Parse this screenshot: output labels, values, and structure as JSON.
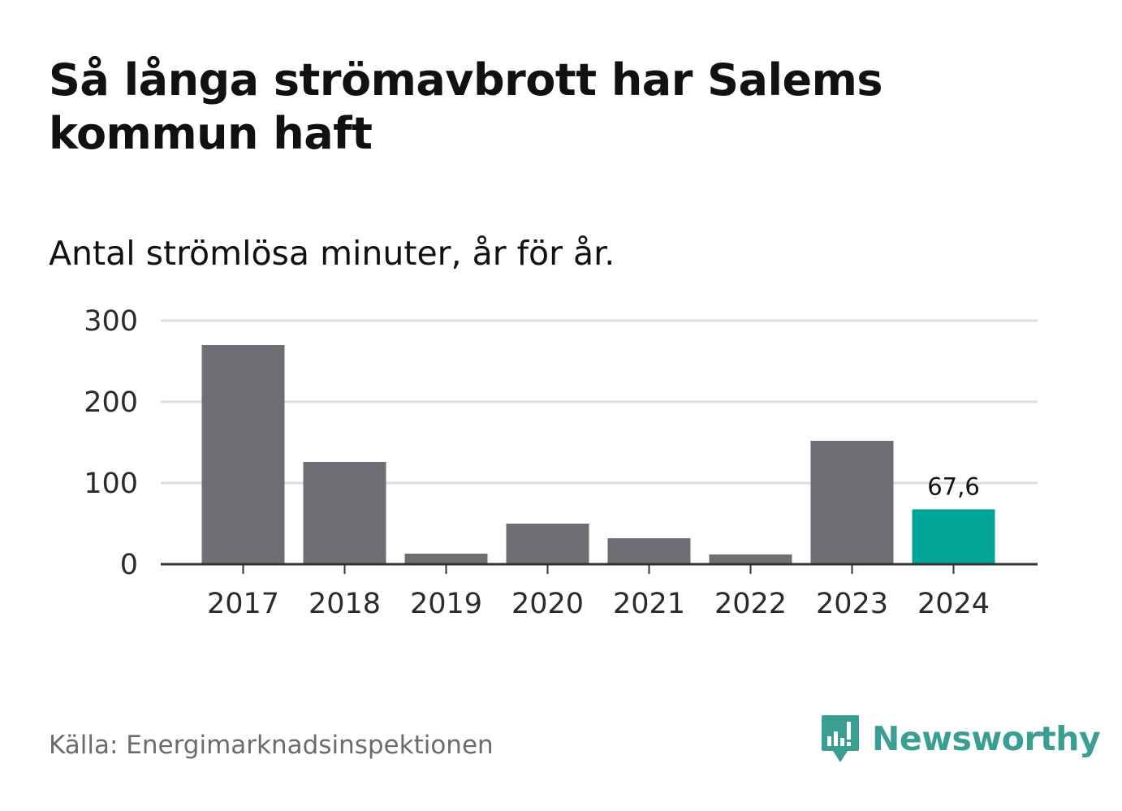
{
  "title": "Så långa strömavbrott har Salems kommun haft",
  "subtitle": "Antal strömlösa minuter, år för år.",
  "source": "Källa: Energimarknadsinspektionen",
  "brand": {
    "name": "Newsworthy",
    "icon": "newsworthy-logo-icon"
  },
  "colors": {
    "bar": "#6f6e74",
    "highlight": "#00a598",
    "grid": "#dedede",
    "axis": "#333333",
    "brand": "#3a9e93"
  },
  "chart_data": {
    "type": "bar",
    "title": "Så långa strömavbrott har Salems kommun haft",
    "subtitle": "Antal strömlösa minuter, år för år.",
    "categories": [
      "2017",
      "2018",
      "2019",
      "2020",
      "2021",
      "2022",
      "2023",
      "2024"
    ],
    "values": [
      270,
      126,
      13,
      50,
      32,
      12,
      152,
      67.6
    ],
    "highlight_index": 7,
    "data_labels": {
      "2024": "67,6"
    },
    "yticks": [
      0,
      100,
      200,
      300
    ],
    "ylim": [
      0,
      300
    ],
    "xlabel": "",
    "ylabel": "",
    "grid": true,
    "legend": "none"
  }
}
